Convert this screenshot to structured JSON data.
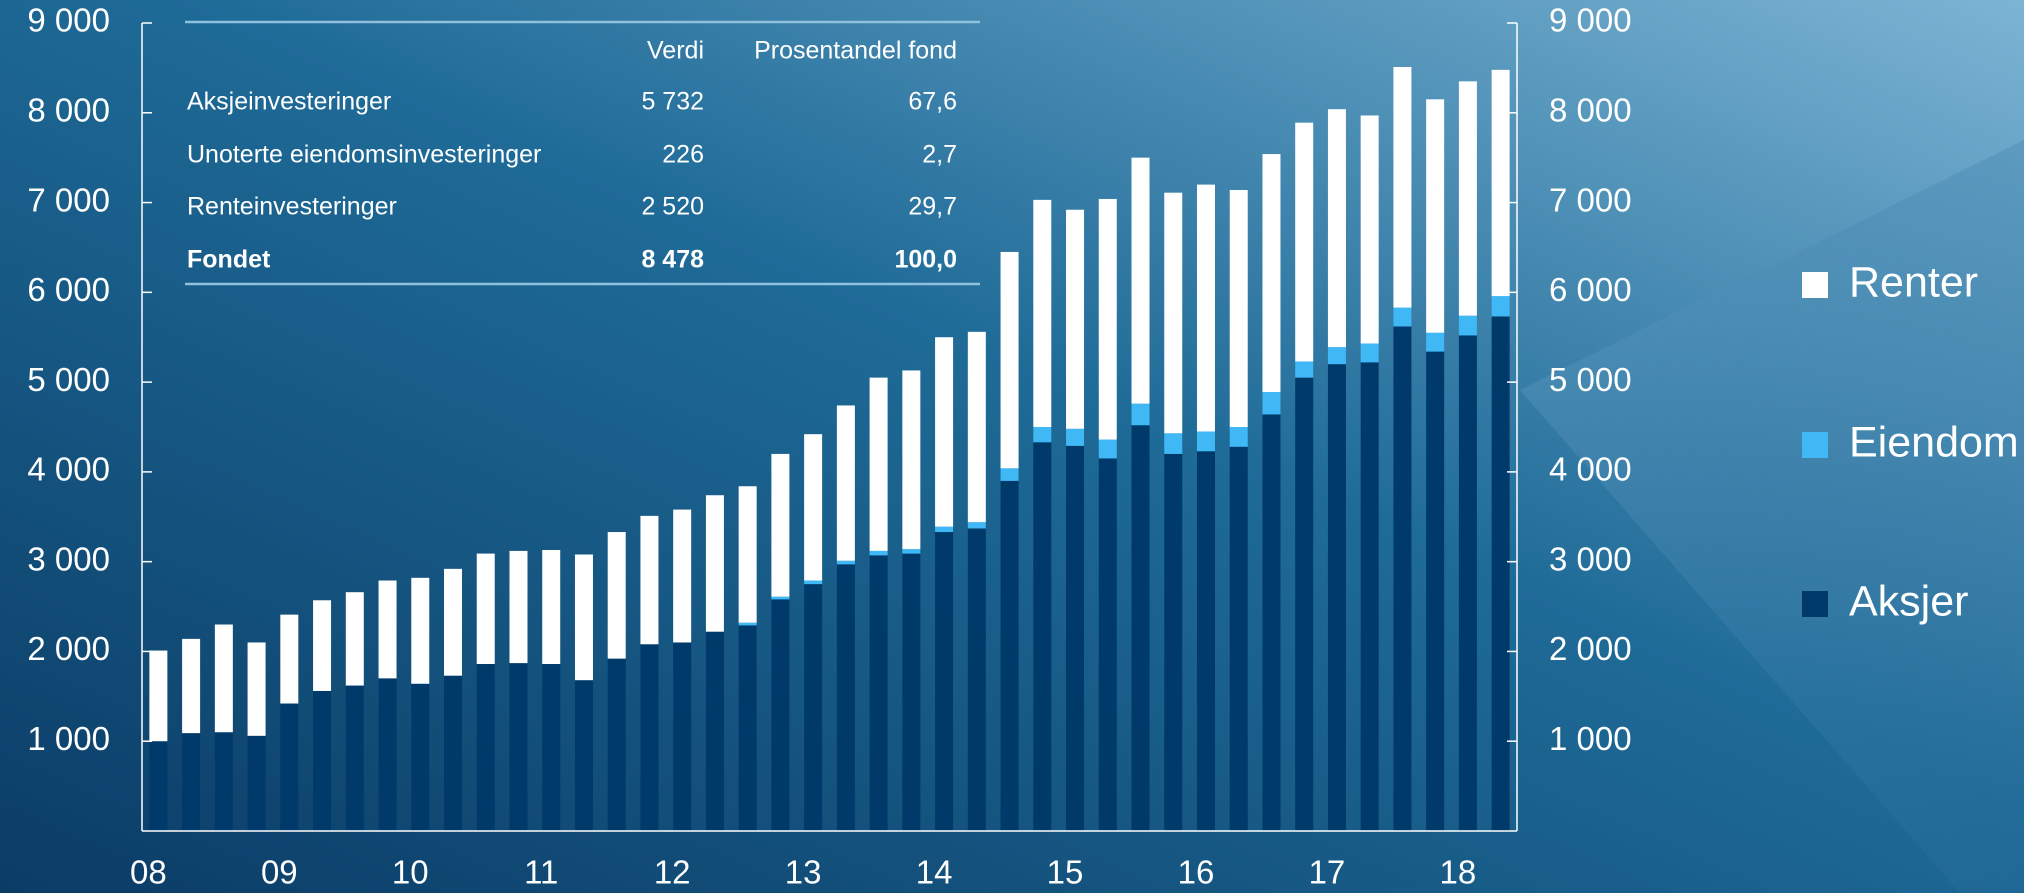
{
  "chart_data": {
    "type": "stacked_bar",
    "categories": [
      "08",
      null,
      null,
      null,
      "09",
      null,
      null,
      null,
      "10",
      null,
      null,
      null,
      "11",
      null,
      null,
      null,
      "12",
      null,
      null,
      null,
      "13",
      null,
      null,
      null,
      "14",
      null,
      null,
      null,
      "15",
      null,
      null,
      null,
      "16",
      null,
      null,
      null,
      "17",
      null,
      null,
      null,
      "18",
      null
    ],
    "series": [
      {
        "name": "Aksjer",
        "color": "#003a6a",
        "values": [
          1000,
          1090,
          1100,
          1060,
          1420,
          1560,
          1620,
          1700,
          1640,
          1730,
          1860,
          1870,
          1860,
          1680,
          1920,
          2080,
          2100,
          2220,
          2290,
          2580,
          2750,
          2970,
          3070,
          3090,
          3330,
          3370,
          3900,
          4330,
          4290,
          4150,
          4520,
          4200,
          4230,
          4280,
          4640,
          5050,
          5200,
          5220,
          5620,
          5340,
          5520,
          5732
        ]
      },
      {
        "name": "Eiendom",
        "color": "#3fb8f5",
        "values": [
          0,
          0,
          0,
          0,
          0,
          0,
          0,
          0,
          0,
          0,
          0,
          0,
          0,
          0,
          0,
          0,
          0,
          0,
          30,
          30,
          40,
          40,
          50,
          50,
          60,
          70,
          140,
          170,
          190,
          210,
          240,
          230,
          220,
          220,
          250,
          180,
          190,
          210,
          210,
          210,
          220,
          226
        ]
      },
      {
        "name": "Renter",
        "color": "#ffffff",
        "values": [
          1010,
          1050,
          1200,
          1040,
          990,
          1010,
          1040,
          1090,
          1180,
          1190,
          1230,
          1250,
          1270,
          1400,
          1410,
          1430,
          1480,
          1520,
          1520,
          1590,
          1630,
          1730,
          1930,
          1990,
          2110,
          2120,
          2410,
          2530,
          2440,
          2680,
          2740,
          2680,
          2750,
          2640,
          2650,
          2660,
          2650,
          2540,
          2680,
          2600,
          2610,
          2520
        ]
      }
    ],
    "ylim": [
      0,
      9000
    ],
    "yticks": [
      {
        "value": 1000,
        "label": "1 000"
      },
      {
        "value": 2000,
        "label": "2 000"
      },
      {
        "value": 3000,
        "label": "3 000"
      },
      {
        "value": 4000,
        "label": "4 000"
      },
      {
        "value": 5000,
        "label": "5 000"
      },
      {
        "value": 6000,
        "label": "6 000"
      },
      {
        "value": 7000,
        "label": "7 000"
      },
      {
        "value": 8000,
        "label": "8 000"
      },
      {
        "value": 9000,
        "label": "9 000"
      }
    ],
    "legend": "right"
  },
  "table": {
    "header": [
      "Verdi",
      "Prosentandel fond"
    ],
    "rows": [
      [
        "Aksjeinvesteringer",
        "5 732",
        "67,6"
      ],
      [
        "Unoterte eiendomsinvesteringer",
        "226",
        "2,7"
      ],
      [
        "Renteinvesteringer",
        "2 520",
        "29,7"
      ],
      [
        "Fondet",
        "8 478",
        "100,0"
      ]
    ]
  }
}
